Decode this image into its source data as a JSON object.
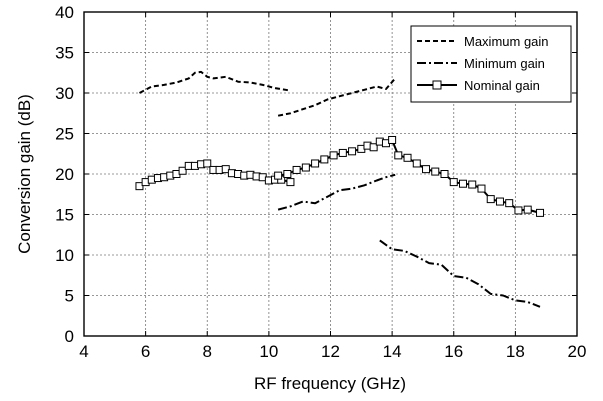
{
  "chart_data": {
    "type": "line",
    "title": "",
    "xlabel": "RF frequency (GHz)",
    "ylabel": "Conversion gain (dB)",
    "xlim": [
      4,
      20
    ],
    "ylim": [
      0,
      40
    ],
    "xticks": [
      "4",
      "6",
      "8",
      "10",
      "12",
      "14",
      "16",
      "18",
      "20"
    ],
    "yticks": [
      "0",
      "5",
      "10",
      "15",
      "20",
      "25",
      "30",
      "35",
      "40"
    ],
    "grid": true,
    "legend_position": "top-right",
    "series": [
      {
        "name": "Maximum gain",
        "style": "dashed",
        "segments": [
          {
            "x": [
              5.8,
              6.2,
              6.6,
              7.0,
              7.4,
              7.6,
              7.8,
              8.0,
              8.2,
              8.6,
              9.0,
              9.4,
              9.8,
              10.2,
              10.7
            ],
            "y": [
              30.0,
              30.8,
              31.0,
              31.3,
              31.8,
              32.5,
              32.6,
              32.0,
              31.8,
              32.0,
              31.4,
              31.3,
              31.0,
              30.6,
              30.3
            ]
          },
          {
            "x": [
              10.3,
              10.7,
              11.1,
              11.5,
              11.9,
              12.3,
              12.7,
              13.1,
              13.5,
              13.8,
              14.1
            ],
            "y": [
              27.2,
              27.5,
              28.0,
              28.5,
              29.2,
              29.6,
              30.0,
              30.4,
              30.8,
              30.5,
              31.8
            ]
          }
        ]
      },
      {
        "name": "Minimum gain",
        "style": "dashdot",
        "segments": [
          {
            "x": [
              10.3,
              10.7,
              11.1,
              11.5,
              11.9,
              12.3,
              12.7,
              13.1,
              13.5,
              13.8,
              14.1
            ],
            "y": [
              15.6,
              16.0,
              16.6,
              16.4,
              17.2,
              18.0,
              18.2,
              18.6,
              19.2,
              19.6,
              19.9
            ]
          },
          {
            "x": [
              13.6,
              14.0,
              14.4,
              14.8,
              15.2,
              15.6,
              16.0,
              16.4,
              16.8,
              17.2,
              17.6,
              18.0,
              18.4,
              18.8
            ],
            "y": [
              11.8,
              10.7,
              10.5,
              9.8,
              9.0,
              8.8,
              7.4,
              7.2,
              6.4,
              5.2,
              5.0,
              4.4,
              4.2,
              3.6
            ]
          }
        ]
      },
      {
        "name": "Nominal gain",
        "style": "solid-square-markers",
        "segments": [
          {
            "x": [
              5.8,
              6.0,
              6.2,
              6.4,
              6.6,
              6.8,
              7.0,
              7.2,
              7.4,
              7.6,
              7.8,
              8.0,
              8.2,
              8.4,
              8.6,
              8.8,
              9.0,
              9.2,
              9.4,
              9.6,
              9.8,
              10.0,
              10.2,
              10.4,
              10.7
            ],
            "y": [
              18.5,
              19.0,
              19.3,
              19.5,
              19.6,
              19.8,
              20.0,
              20.4,
              21.0,
              21.0,
              21.2,
              21.3,
              20.5,
              20.5,
              20.6,
              20.1,
              20.0,
              19.8,
              19.9,
              19.7,
              19.6,
              19.2,
              19.3,
              19.3,
              19.0
            ]
          },
          {
            "x": [
              10.3,
              10.6,
              10.9,
              11.2,
              11.5,
              11.8,
              12.1,
              12.4,
              12.7,
              13.0,
              13.2,
              13.4,
              13.6,
              13.8,
              14.0,
              14.2,
              14.5,
              14.8,
              15.1,
              15.4,
              15.7,
              16.0,
              16.3,
              16.6,
              16.9,
              17.2,
              17.5,
              17.8,
              18.1,
              18.4,
              18.8
            ],
            "y": [
              19.8,
              20.0,
              20.5,
              20.8,
              21.3,
              21.8,
              22.3,
              22.6,
              22.8,
              23.1,
              23.5,
              23.3,
              24.0,
              23.8,
              24.2,
              22.3,
              22.0,
              21.3,
              20.6,
              20.3,
              20.0,
              19.0,
              18.8,
              18.7,
              18.2,
              16.9,
              16.6,
              16.4,
              15.5,
              15.6,
              15.2
            ]
          }
        ]
      }
    ]
  }
}
